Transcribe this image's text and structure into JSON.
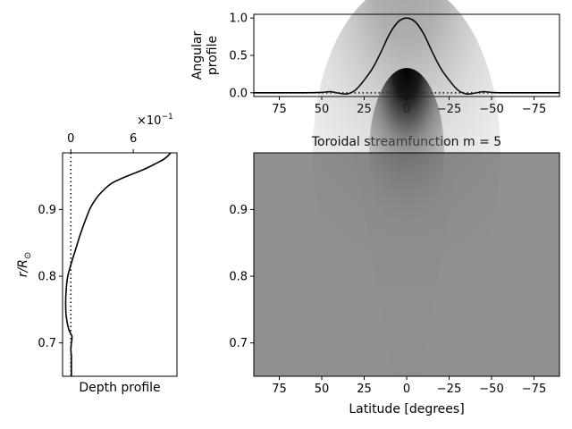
{
  "chart_data": [
    {
      "type": "line",
      "panel": "angular",
      "ylabel_lines": [
        "Angular",
        "profile"
      ],
      "xlim": [
        90,
        -90
      ],
      "ylim": [
        -0.05,
        1.05
      ],
      "xticks": [
        75,
        50,
        25,
        0,
        -25,
        -50,
        -75
      ],
      "xticklabels": [
        "75",
        "50",
        "25",
        "0",
        "−25",
        "−50",
        "−75"
      ],
      "yticks": [
        0.0,
        0.5,
        1.0
      ],
      "yticklabels": [
        "0.0",
        "0.5",
        "1.0"
      ],
      "reference_line": {
        "y": 0,
        "style": "dotted"
      },
      "x": [
        90,
        60,
        50,
        45,
        40,
        35,
        30,
        25,
        20,
        15,
        10,
        5,
        0,
        -5,
        -10,
        -15,
        -20,
        -25,
        -30,
        -35,
        -40,
        -45,
        -50,
        -55,
        -60,
        -90
      ],
      "y": [
        0.0,
        0.0,
        0.005,
        0.015,
        -0.005,
        -0.015,
        0.04,
        0.17,
        0.33,
        0.55,
        0.79,
        0.95,
        1.0,
        0.95,
        0.79,
        0.55,
        0.33,
        0.17,
        0.04,
        -0.015,
        -0.005,
        0.015,
        0.005,
        0.0,
        0.0,
        0.0
      ]
    },
    {
      "type": "line",
      "panel": "depth",
      "xlabel": "Depth profile",
      "ylabel": "r/R",
      "ylabel_sub": "⊙",
      "x_offset_text": "×10",
      "x_offset_exp": "−1",
      "xlim": [
        -0.8,
        10.2
      ],
      "ylim": [
        0.65,
        0.985
      ],
      "xticks": [
        0,
        6
      ],
      "xticklabels": [
        "0",
        "6"
      ],
      "yticks": [
        0.7,
        0.8,
        0.9
      ],
      "yticklabels": [
        "0.7",
        "0.8",
        "0.9"
      ],
      "reference_line": {
        "x": 0,
        "style": "dotted"
      },
      "r": [
        0.985,
        0.98,
        0.975,
        0.97,
        0.96,
        0.95,
        0.94,
        0.93,
        0.92,
        0.91,
        0.9,
        0.88,
        0.86,
        0.84,
        0.82,
        0.8,
        0.78,
        0.76,
        0.74,
        0.72,
        0.71,
        0.7,
        0.69,
        0.68,
        0.67,
        0.65
      ],
      "x": [
        9.6,
        9.3,
        8.9,
        8.3,
        7.0,
        5.4,
        4.0,
        3.2,
        2.6,
        2.15,
        1.8,
        1.3,
        0.85,
        0.45,
        0.05,
        -0.3,
        -0.45,
        -0.5,
        -0.45,
        -0.2,
        0.1,
        0.05,
        0.0,
        0.05,
        0.05,
        0.05
      ]
    },
    {
      "type": "heatmap",
      "panel": "streamfunction",
      "title": "Toroidal streamfunction m = 5",
      "xlabel": "Latitude [degrees]",
      "xlim": [
        90,
        -90
      ],
      "ylim": [
        0.65,
        0.985
      ],
      "xticks": [
        75,
        50,
        25,
        0,
        -25,
        -50,
        -75
      ],
      "xticklabels": [
        "75",
        "50",
        "25",
        "0",
        "−25",
        "−50",
        "−75"
      ],
      "yticks": [
        0.7,
        0.8,
        0.9
      ],
      "yticklabels": [
        "0.7",
        "0.8",
        "0.9"
      ],
      "colormap": "gray",
      "background_color": "#8f8f8f",
      "feature": {
        "lat_center": 0,
        "lat_width": 18,
        "r_peak": 0.985,
        "r_scale": 0.06,
        "min_value": -1.0
      }
    }
  ],
  "colors": {
    "line": "#000000",
    "axes": "#000000",
    "background": "#ffffff"
  }
}
